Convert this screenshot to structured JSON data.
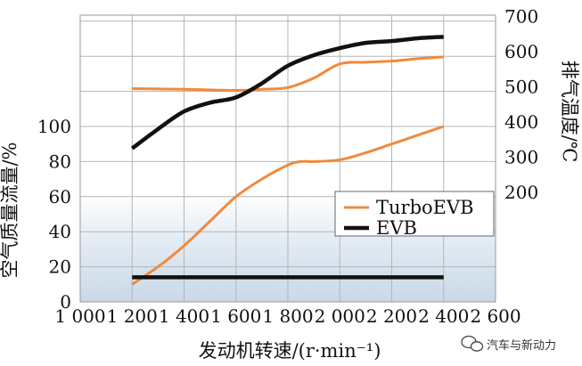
{
  "chart_data": {
    "type": "line",
    "xlabel": "发动机转速/(r·min⁻¹)",
    "ylabel_left": "空气质量流量/%",
    "ylabel_right": "排气温度/℃",
    "x_ticks": [
      "1 000",
      "1 200",
      "1 400",
      "1 600",
      "1 800",
      "2 000",
      "2 200",
      "2 400",
      "2 600"
    ],
    "x_tick_values": [
      1000,
      1200,
      1400,
      1600,
      1800,
      2000,
      2200,
      2400,
      2600
    ],
    "xlim": [
      1000,
      2600
    ],
    "left_y_ticks": [
      "0",
      "20",
      "40",
      "60",
      "80",
      "100"
    ],
    "left_y_tick_values": [
      0,
      20,
      40,
      60,
      80,
      100
    ],
    "right_y_ticks": [
      "200",
      "300",
      "400",
      "500",
      "600",
      "700"
    ],
    "right_y_tick_values": [
      200,
      300,
      400,
      500,
      600,
      700
    ],
    "left_ylim": [
      0,
      165
    ],
    "grid": true,
    "legend_position": "center-right",
    "series": [
      {
        "name": "TurboEVB",
        "color": "#f08a3c",
        "axis": "left",
        "x": [
          1200,
          1300,
          1400,
          1500,
          1600,
          1700,
          1800,
          1850,
          1900,
          2000,
          2100,
          2200,
          2300,
          2400
        ],
        "y": [
          10,
          20,
          32,
          46,
          60,
          70,
          78,
          80,
          80,
          81,
          85,
          90,
          95,
          100
        ]
      },
      {
        "name": "EVB",
        "color": "#111111",
        "axis": "left",
        "x": [
          1200,
          2400
        ],
        "y": [
          14,
          14
        ]
      },
      {
        "name": "TurboEVB",
        "color": "#f08a3c",
        "axis": "right",
        "x": [
          1200,
          1400,
          1600,
          1700,
          1800,
          1900,
          2000,
          2100,
          2200,
          2300,
          2400
        ],
        "y": [
          495,
          493,
          490,
          493,
          498,
          525,
          565,
          570,
          573,
          580,
          585
        ]
      },
      {
        "name": "EVB",
        "color": "#111111",
        "axis": "right",
        "x": [
          1200,
          1300,
          1400,
          1500,
          1600,
          1700,
          1800,
          1900,
          2000,
          2100,
          2200,
          2300,
          2400
        ],
        "y": [
          325,
          380,
          430,
          455,
          470,
          510,
          560,
          590,
          610,
          625,
          630,
          638,
          642
        ]
      }
    ]
  },
  "legend": {
    "items": [
      {
        "label": "TurboEVB",
        "color": "#f08a3c"
      },
      {
        "label": "EVB",
        "color": "#111111"
      }
    ]
  },
  "watermark": {
    "text": "汽车与新动力"
  }
}
